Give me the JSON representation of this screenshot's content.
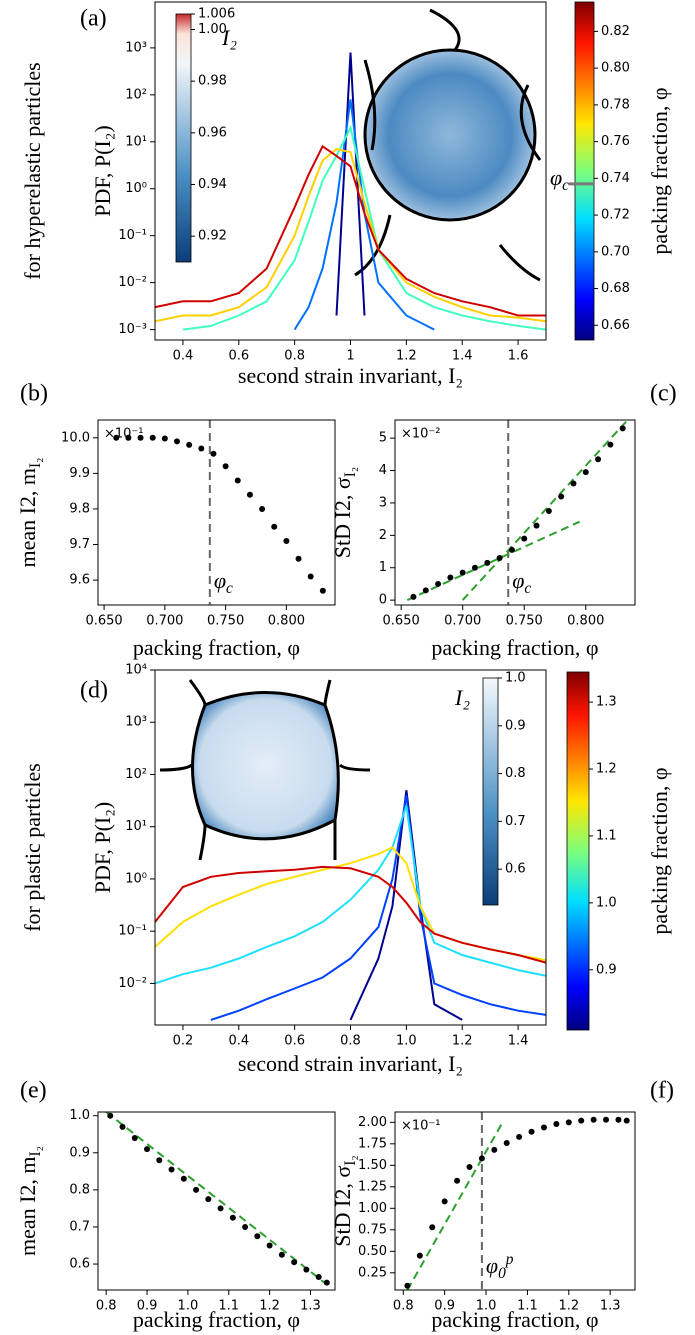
{
  "chart_data": [
    {
      "type": "line",
      "label": "(a)",
      "side_label": "for hyperelastic particles",
      "ylabel": "PDF, P(I₂)",
      "xlabel": "second strain invariant, I₂",
      "log_y": true,
      "xlim": [
        0.3,
        1.7
      ],
      "xticks": [
        0.4,
        0.6,
        0.8,
        1.0,
        1.2,
        1.4,
        1.6
      ],
      "ylim": [
        0.0006,
        9500
      ],
      "yticks": [
        {
          "value": 0.001,
          "label": "10⁻³"
        },
        {
          "value": 0.01,
          "label": "10⁻²"
        },
        {
          "value": 0.1,
          "label": "10⁻¹"
        },
        {
          "value": 1,
          "label": "10⁰"
        },
        {
          "value": 10,
          "label": "10¹"
        },
        {
          "value": 100,
          "label": "10²"
        },
        {
          "value": 1000,
          "label": "10³"
        }
      ],
      "x": [
        0.3,
        0.4,
        0.5,
        0.6,
        0.7,
        0.8,
        0.85,
        0.9,
        0.95,
        1.0,
        1.05,
        1.1,
        1.2,
        1.3,
        1.4,
        1.5,
        1.6,
        1.7
      ],
      "series": [
        {
          "color": "#00008f",
          "values": [
            null,
            null,
            null,
            null,
            null,
            null,
            null,
            null,
            0.002,
            800,
            0.002,
            null,
            null,
            null,
            null,
            null,
            null,
            null
          ]
        },
        {
          "color": "#0070ff",
          "values": [
            null,
            null,
            null,
            null,
            null,
            0.001,
            0.003,
            0.02,
            0.5,
            80,
            0.3,
            0.01,
            0.002,
            0.001,
            null,
            null,
            null,
            null
          ]
        },
        {
          "color": "#40ffbf",
          "values": [
            null,
            0.001,
            0.0012,
            0.002,
            0.004,
            0.03,
            0.2,
            1.5,
            5,
            20,
            1,
            0.05,
            0.006,
            0.003,
            0.002,
            0.0015,
            0.0012,
            0.001
          ]
        },
        {
          "color": "#ffd000",
          "values": [
            0.0015,
            0.002,
            0.002,
            0.003,
            0.008,
            0.1,
            0.7,
            4,
            7,
            6,
            0.5,
            0.05,
            0.01,
            0.005,
            0.003,
            0.002,
            0.0018,
            0.0015
          ]
        },
        {
          "color": "#d00000",
          "values": [
            0.003,
            0.004,
            0.004,
            0.006,
            0.02,
            0.4,
            2,
            8,
            5,
            3,
            0.3,
            0.05,
            0.012,
            0.006,
            0.004,
            0.003,
            0.002,
            0.002
          ]
        }
      ],
      "colorbar": {
        "label": "packing fraction, φ",
        "lim": [
          0.652,
          0.836
        ],
        "ticks": [
          0.66,
          0.68,
          {
            "value": 0.7,
            "label": "0.70"
          },
          0.72,
          0.74,
          0.76,
          0.78,
          {
            "value": 0.8,
            "label": "0.80"
          },
          0.82
        ],
        "marker": {
          "value": 0.737,
          "symbol": "φ",
          "sub": "c"
        }
      },
      "inset_colorbar": {
        "label": "I₂",
        "lim": [
          0.91,
          1.006
        ],
        "ticks": [
          0.92,
          0.94,
          0.96,
          0.98,
          {
            "value": 1.0,
            "label": "1.00"
          },
          1.006
        ]
      }
    },
    {
      "type": "scatter",
      "label": "(b)",
      "ylabel": "mean I2, m",
      "ylabel_sub": "I₂",
      "xlabel": "packing fraction, φ",
      "xlim": [
        0.645,
        0.84
      ],
      "xticks": [
        {
          "value": 0.65,
          "label": "0.650"
        },
        {
          "value": 0.7,
          "label": "0.700"
        },
        {
          "value": 0.75,
          "label": "0.750"
        },
        {
          "value": 0.8,
          "label": "0.800"
        }
      ],
      "ylim": [
        9.53,
        10.05
      ],
      "yticks": [
        9.6,
        9.7,
        9.8,
        9.9,
        {
          "value": 10,
          "label": "10.0"
        }
      ],
      "annotation": "×10⁻¹",
      "color": "#000000",
      "x": [
        0.66,
        0.67,
        0.68,
        0.69,
        0.7,
        0.71,
        0.72,
        0.73,
        0.74,
        0.75,
        0.76,
        0.77,
        0.78,
        0.79,
        0.8,
        0.81,
        0.82,
        0.83
      ],
      "values": [
        10.0,
        10.0,
        10.0,
        10.0,
        9.998,
        9.99,
        9.98,
        9.97,
        9.955,
        9.92,
        9.88,
        9.84,
        9.8,
        9.75,
        9.71,
        9.66,
        9.61,
        9.57
      ],
      "vline": {
        "value": 0.737,
        "symbol": "φ",
        "sub": "c"
      }
    },
    {
      "type": "scatter",
      "label": "(c)",
      "ylabel": "StD I2, σ",
      "ylabel_sub": "I₂",
      "xlabel": "packing fraction, φ",
      "xlim": [
        0.645,
        0.84
      ],
      "xticks": [
        {
          "value": 0.65,
          "label": "0.650"
        },
        {
          "value": 0.7,
          "label": "0.700"
        },
        {
          "value": 0.75,
          "label": "0.750"
        },
        {
          "value": 0.8,
          "label": "0.800"
        }
      ],
      "ylim": [
        -0.15,
        5.56
      ],
      "yticks": [
        0,
        1,
        2,
        3,
        4,
        5
      ],
      "annotation": "×10⁻²",
      "color": "#000000",
      "x": [
        0.66,
        0.67,
        0.68,
        0.69,
        0.7,
        0.71,
        0.72,
        0.73,
        0.74,
        0.75,
        0.76,
        0.77,
        0.78,
        0.79,
        0.8,
        0.81,
        0.82,
        0.83
      ],
      "values": [
        0.1,
        0.3,
        0.5,
        0.7,
        0.85,
        1.0,
        1.15,
        1.3,
        1.55,
        1.9,
        2.3,
        2.75,
        3.2,
        3.6,
        3.95,
        4.35,
        4.8,
        5.3
      ],
      "fits": [
        {
          "color": "#2ca02c",
          "x": [
            0.655,
            0.795
          ],
          "values": [
            0.0,
            2.42
          ]
        },
        {
          "color": "#2ca02c",
          "x": [
            0.7,
            0.835
          ],
          "values": [
            0,
            5.6
          ]
        }
      ],
      "vline": {
        "value": 0.737,
        "symbol": "φ",
        "sub": "c"
      }
    },
    {
      "type": "line",
      "label": "(d)",
      "side_label": "for plastic particles",
      "ylabel": "PDF, P(I₂)",
      "xlabel": "second strain invariant, I₂",
      "log_y": true,
      "xlim": [
        0.1,
        1.5
      ],
      "xticks": [
        0.2,
        0.4,
        0.6,
        0.8,
        {
          "value": 1.0,
          "label": "1.0"
        },
        1.2,
        1.4
      ],
      "ylim": [
        0.0016,
        10000
      ],
      "yticks": [
        {
          "value": 0.01,
          "label": "10⁻²"
        },
        {
          "value": 0.1,
          "label": "10⁻¹"
        },
        {
          "value": 1,
          "label": "10⁰"
        },
        {
          "value": 10,
          "label": "10¹"
        },
        {
          "value": 100,
          "label": "10²"
        },
        {
          "value": 1000,
          "label": "10³"
        },
        {
          "value": 10000,
          "label": "10⁴"
        }
      ],
      "x": [
        0.1,
        0.2,
        0.3,
        0.4,
        0.5,
        0.6,
        0.7,
        0.8,
        0.9,
        0.95,
        1.0,
        1.05,
        1.1,
        1.2,
        1.3,
        1.4,
        1.5
      ],
      "series": [
        {
          "color": "#00008f",
          "values": [
            null,
            null,
            null,
            null,
            null,
            null,
            null,
            0.002,
            0.03,
            0.3,
            50,
            0.3,
            0.004,
            0.002,
            null,
            null,
            null
          ]
        },
        {
          "color": "#0040ff",
          "values": [
            null,
            null,
            0.002,
            0.003,
            0.005,
            0.008,
            0.013,
            0.03,
            0.12,
            1,
            40,
            0.2,
            0.01,
            0.006,
            0.004,
            0.003,
            0.0025
          ]
        },
        {
          "color": "#20e0ff",
          "values": [
            0.01,
            0.015,
            0.02,
            0.03,
            0.05,
            0.08,
            0.15,
            0.4,
            1.5,
            4,
            25,
            0.3,
            0.06,
            0.035,
            0.025,
            0.018,
            0.014
          ]
        },
        {
          "color": "#ffe000",
          "values": [
            0.05,
            0.15,
            0.3,
            0.5,
            0.8,
            1.1,
            1.5,
            2,
            3,
            4,
            2,
            0.3,
            0.09,
            0.06,
            0.045,
            0.035,
            0.028
          ]
        },
        {
          "color": "#d00000",
          "values": [
            0.15,
            0.7,
            1.1,
            1.3,
            1.4,
            1.5,
            1.7,
            1.6,
            1.1,
            0.7,
            0.35,
            0.15,
            0.09,
            0.06,
            0.045,
            0.035,
            0.025
          ]
        }
      ],
      "colorbar": {
        "label": "packing fraction, φ",
        "lim": [
          0.81,
          1.345
        ],
        "ticks": [
          0.9,
          {
            "value": 1.0,
            "label": "1.0"
          },
          1.1,
          1.2,
          1.3
        ]
      },
      "inset_colorbar": {
        "label": "I₂",
        "lim": [
          0.525,
          1.0
        ],
        "ticks": [
          0.6,
          0.7,
          0.8,
          0.9,
          {
            "value": 1.0,
            "label": "1.0"
          }
        ]
      }
    },
    {
      "type": "scatter",
      "label": "(e)",
      "ylabel": "mean I2, m",
      "ylabel_sub": "I₂",
      "xlabel": "packing fraction, φ",
      "xlim": [
        0.78,
        1.36
      ],
      "xticks": [
        0.8,
        0.9,
        {
          "value": 1.0,
          "label": "1.0"
        },
        1.1,
        1.2,
        1.3
      ],
      "ylim": [
        0.53,
        1.01
      ],
      "yticks": [
        0.6,
        0.7,
        0.8,
        0.9,
        {
          "value": 1.0,
          "label": "1.0"
        }
      ],
      "color": "#000000",
      "x": [
        0.81,
        0.84,
        0.87,
        0.9,
        0.93,
        0.96,
        0.99,
        1.02,
        1.05,
        1.08,
        1.11,
        1.14,
        1.17,
        1.2,
        1.23,
        1.26,
        1.29,
        1.32,
        1.34
      ],
      "values": [
        1.0,
        0.97,
        0.94,
        0.91,
        0.88,
        0.855,
        0.83,
        0.8,
        0.775,
        0.75,
        0.725,
        0.7,
        0.675,
        0.65,
        0.625,
        0.605,
        0.585,
        0.565,
        0.55
      ],
      "fits": [
        {
          "color": "#2ca02c",
          "x": [
            0.8,
            1.34
          ],
          "values": [
            1.01,
            0.545
          ]
        }
      ]
    },
    {
      "type": "scatter",
      "label": "(f)",
      "ylabel": "StD I2, σ",
      "ylabel_sub": "I₂",
      "xlabel": "packing fraction, φ",
      "xlim": [
        0.78,
        1.36
      ],
      "xticks": [
        0.8,
        0.9,
        {
          "value": 1.0,
          "label": "1.0"
        },
        1.1,
        1.2,
        1.3
      ],
      "ylim": [
        0.05,
        2.12
      ],
      "yticks": [
        0.25,
        {
          "value": 0.5,
          "label": "0.50"
        },
        0.75,
        {
          "value": 1,
          "label": "1.00"
        },
        1.25,
        {
          "value": 1.5,
          "label": "1.50"
        },
        1.75,
        {
          "value": 2,
          "label": "2.00"
        }
      ],
      "annotation": "×10⁻¹",
      "color": "#000000",
      "x": [
        0.81,
        0.84,
        0.87,
        0.9,
        0.93,
        0.96,
        0.99,
        1.02,
        1.05,
        1.08,
        1.11,
        1.14,
        1.17,
        1.2,
        1.23,
        1.26,
        1.29,
        1.32,
        1.34
      ],
      "values": [
        0.1,
        0.45,
        0.78,
        1.08,
        1.32,
        1.48,
        1.58,
        1.68,
        1.76,
        1.83,
        1.89,
        1.94,
        1.98,
        2.0,
        2.02,
        2.03,
        2.03,
        2.03,
        2.02
      ],
      "fits": [
        {
          "color": "#2ca02c",
          "x": [
            0.81,
            1.04
          ],
          "values": [
            0.05,
            2.0
          ]
        }
      ],
      "vline": {
        "value": 0.99,
        "symbol": "φ",
        "sub": "0",
        "sup": "p"
      }
    }
  ]
}
